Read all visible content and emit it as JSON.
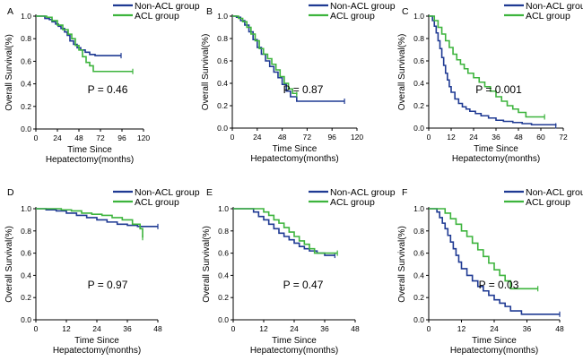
{
  "legend": {
    "series_a": "Non-ACL group",
    "series_b": "ACL group",
    "colors": {
      "non_acl": "#1f3a93",
      "acl": "#3db43d"
    }
  },
  "chart_data": [
    {
      "type": "line",
      "panel": "A",
      "xlabel_line1": "Time Since",
      "xlabel_line2": "Hepatectomy(months)",
      "ylabel": "Overall Survival(%)",
      "xlim": [
        0,
        120
      ],
      "xticks": [
        0,
        24,
        48,
        72,
        96,
        120
      ],
      "ylim": [
        0,
        1
      ],
      "yticks": [
        "0.0",
        "0.2",
        "0.4",
        "0.6",
        "0.8",
        "1.0"
      ],
      "pvalue": "P = 0.46",
      "series": [
        {
          "name": "Non-ACL group",
          "x": [
            0,
            5,
            10,
            15,
            18,
            22,
            25,
            28,
            32,
            35,
            38,
            42,
            46,
            50,
            55,
            60,
            66,
            95
          ],
          "y": [
            1,
            1,
            0.98,
            0.97,
            0.95,
            0.93,
            0.91,
            0.89,
            0.86,
            0.83,
            0.78,
            0.75,
            0.72,
            0.7,
            0.68,
            0.66,
            0.65,
            0.65
          ]
        },
        {
          "name": "ACL group",
          "x": [
            0,
            6,
            12,
            18,
            24,
            30,
            36,
            40,
            44,
            48,
            52,
            56,
            60,
            64,
            68,
            108
          ],
          "y": [
            1,
            1,
            0.99,
            0.96,
            0.92,
            0.88,
            0.84,
            0.8,
            0.74,
            0.7,
            0.64,
            0.59,
            0.56,
            0.51,
            0.51,
            0.51
          ]
        }
      ]
    },
    {
      "type": "line",
      "panel": "B",
      "xlabel_line1": "Time Since",
      "xlabel_line2": "Hepatectomy(months)",
      "ylabel": "Overall Survival(%)",
      "xlim": [
        0,
        120
      ],
      "xticks": [
        0,
        24,
        48,
        72,
        96,
        120
      ],
      "ylim": [
        0,
        1
      ],
      "yticks": [
        "0.0",
        "0.2",
        "0.4",
        "0.6",
        "0.8",
        "1.0"
      ],
      "pvalue": "P = 0.87",
      "series": [
        {
          "name": "Non-ACL group",
          "x": [
            0,
            4,
            8,
            12,
            16,
            20,
            24,
            28,
            32,
            36,
            40,
            44,
            48,
            52,
            56,
            62,
            108
          ],
          "y": [
            1,
            0.99,
            0.96,
            0.92,
            0.86,
            0.79,
            0.72,
            0.66,
            0.6,
            0.55,
            0.5,
            0.45,
            0.39,
            0.33,
            0.28,
            0.24,
            0.24
          ]
        },
        {
          "name": "ACL group",
          "x": [
            0,
            6,
            10,
            14,
            18,
            22,
            26,
            30,
            34,
            38,
            42,
            46,
            50,
            54,
            58,
            62
          ],
          "y": [
            1,
            0.98,
            0.95,
            0.9,
            0.84,
            0.78,
            0.71,
            0.66,
            0.62,
            0.57,
            0.52,
            0.46,
            0.4,
            0.35,
            0.31,
            0.3
          ]
        }
      ]
    },
    {
      "type": "line",
      "panel": "C",
      "xlabel_line1": "Time Since",
      "xlabel_line2": "Hepatectomy(months)",
      "ylabel": "Overall Survival(%)",
      "xlim": [
        0,
        72
      ],
      "xticks": [
        0,
        12,
        24,
        36,
        48,
        60,
        72
      ],
      "ylim": [
        0,
        1
      ],
      "yticks": [
        "0.0",
        "0.2",
        "0.4",
        "0.6",
        "0.8",
        "1.0"
      ],
      "pvalue": "P = 0.001",
      "series": [
        {
          "name": "Non-ACL group",
          "x": [
            0,
            2,
            3,
            4,
            5,
            6,
            7,
            8,
            9,
            10,
            11,
            12,
            14,
            16,
            18,
            20,
            22,
            25,
            28,
            32,
            36,
            40,
            45,
            50,
            55,
            68
          ],
          "y": [
            1,
            0.96,
            0.91,
            0.85,
            0.78,
            0.71,
            0.63,
            0.56,
            0.49,
            0.43,
            0.37,
            0.32,
            0.26,
            0.22,
            0.19,
            0.17,
            0.15,
            0.13,
            0.11,
            0.09,
            0.07,
            0.06,
            0.05,
            0.04,
            0.03,
            0.02
          ]
        },
        {
          "name": "ACL group",
          "x": [
            0,
            3,
            5,
            7,
            9,
            11,
            13,
            15,
            17,
            19,
            21,
            24,
            27,
            30,
            33,
            36,
            39,
            42,
            45,
            48,
            52,
            62
          ],
          "y": [
            1,
            0.96,
            0.9,
            0.84,
            0.78,
            0.72,
            0.66,
            0.61,
            0.57,
            0.53,
            0.49,
            0.45,
            0.41,
            0.37,
            0.33,
            0.28,
            0.24,
            0.2,
            0.17,
            0.14,
            0.1,
            0.1
          ]
        }
      ]
    },
    {
      "type": "line",
      "panel": "D",
      "xlabel_line1": "Time Since",
      "xlabel_line2": "Hepatectomy(months)",
      "ylabel": "Overall Survival(%)",
      "xlim": [
        0,
        48
      ],
      "xticks": [
        0,
        12,
        24,
        36,
        48
      ],
      "ylim": [
        0,
        1
      ],
      "yticks": [
        "0.0",
        "0.2",
        "0.4",
        "0.6",
        "0.8",
        "1.0"
      ],
      "pvalue": "P = 0.97",
      "series": [
        {
          "name": "Non-ACL group",
          "x": [
            0,
            4,
            8,
            12,
            16,
            20,
            24,
            28,
            32,
            36,
            40,
            44,
            48
          ],
          "y": [
            1,
            0.99,
            0.98,
            0.96,
            0.94,
            0.92,
            0.9,
            0.88,
            0.86,
            0.85,
            0.84,
            0.84,
            0.84
          ]
        },
        {
          "name": "ACL group",
          "x": [
            0,
            6,
            10,
            14,
            18,
            22,
            26,
            30,
            34,
            38,
            41,
            42
          ],
          "y": [
            1,
            1,
            0.99,
            0.98,
            0.96,
            0.95,
            0.94,
            0.92,
            0.9,
            0.86,
            0.82,
            0.74
          ]
        }
      ]
    },
    {
      "type": "line",
      "panel": "E",
      "xlabel_line1": "Time Since",
      "xlabel_line2": "Hepatectomy(months)",
      "ylabel": "Overall Survival(%)",
      "xlim": [
        0,
        48
      ],
      "xticks": [
        0,
        12,
        24,
        36,
        48
      ],
      "ylim": [
        0,
        1
      ],
      "yticks": [
        "0.0",
        "0.2",
        "0.4",
        "0.6",
        "0.8",
        "1.0"
      ],
      "pvalue": "P = 0.47",
      "series": [
        {
          "name": "Non-ACL group",
          "x": [
            0,
            5,
            8,
            10,
            12,
            14,
            16,
            18,
            20,
            22,
            24,
            26,
            28,
            30,
            33,
            36,
            40
          ],
          "y": [
            1,
            1,
            0.97,
            0.93,
            0.9,
            0.86,
            0.82,
            0.78,
            0.75,
            0.72,
            0.69,
            0.66,
            0.64,
            0.62,
            0.6,
            0.58,
            0.58
          ]
        },
        {
          "name": "ACL group",
          "x": [
            0,
            8,
            12,
            14,
            16,
            18,
            20,
            22,
            24,
            26,
            28,
            30,
            32,
            36,
            41
          ],
          "y": [
            1,
            1,
            0.97,
            0.94,
            0.9,
            0.87,
            0.83,
            0.79,
            0.75,
            0.71,
            0.68,
            0.64,
            0.6,
            0.6,
            0.6
          ]
        }
      ]
    },
    {
      "type": "line",
      "panel": "F",
      "xlabel_line1": "Time Since",
      "xlabel_line2": "Hepatectomy(months)",
      "ylabel": "Overall Survival(%)",
      "xlim": [
        0,
        48
      ],
      "xticks": [
        0,
        12,
        24,
        36,
        48
      ],
      "ylim": [
        0,
        1
      ],
      "yticks": [
        "0.0",
        "0.2",
        "0.4",
        "0.6",
        "0.8",
        "1.0"
      ],
      "pvalue": "P = 0.03",
      "series": [
        {
          "name": "Non-ACL group",
          "x": [
            0,
            3,
            4,
            5,
            6,
            7,
            8,
            9,
            10,
            11,
            12,
            14,
            16,
            18,
            20,
            22,
            24,
            26,
            28,
            30,
            34,
            48
          ],
          "y": [
            1,
            0.97,
            0.92,
            0.87,
            0.82,
            0.76,
            0.7,
            0.64,
            0.58,
            0.52,
            0.46,
            0.4,
            0.35,
            0.3,
            0.26,
            0.22,
            0.18,
            0.15,
            0.12,
            0.08,
            0.05,
            0.05
          ]
        },
        {
          "name": "ACL group",
          "x": [
            0,
            6,
            8,
            10,
            12,
            14,
            16,
            18,
            20,
            22,
            24,
            26,
            28,
            30,
            40
          ],
          "y": [
            1,
            0.96,
            0.91,
            0.86,
            0.8,
            0.75,
            0.69,
            0.63,
            0.57,
            0.51,
            0.45,
            0.4,
            0.35,
            0.28,
            0.28
          ]
        }
      ]
    }
  ],
  "panel_labels": [
    "A",
    "B",
    "C",
    "D",
    "E",
    "F"
  ]
}
